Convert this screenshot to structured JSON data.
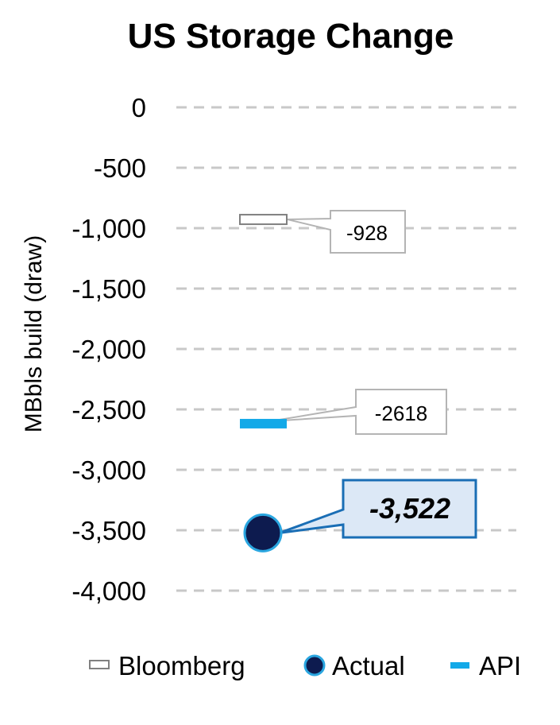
{
  "chart_data": {
    "type": "scatter",
    "title": "US Storage Change",
    "xlabel": "",
    "ylabel": "MBbls build (draw)",
    "ylim": [
      -4000,
      0
    ],
    "yticks": [
      0,
      -500,
      -1000,
      -1500,
      -2000,
      -2500,
      -3000,
      -3500,
      -4000
    ],
    "ytick_labels": [
      "0",
      "-500",
      "-1,000",
      "-1,500",
      "-2,000",
      "-2,500",
      "-3,000",
      "-3,500",
      "-4,000"
    ],
    "grid": true,
    "legend_position": "bottom",
    "series": [
      {
        "name": "Bloomberg",
        "value": -928,
        "label": "-928",
        "marker": "hollow-bar",
        "color": "#ffffff",
        "edge": "#808080"
      },
      {
        "name": "Actual",
        "value": -3522,
        "label": "-3,522",
        "marker": "circle",
        "color": "#0d1b4f",
        "edge": "#2aa6e0"
      },
      {
        "name": "API",
        "value": -2618,
        "label": "-2618",
        "marker": "bar",
        "color": "#13a9e8"
      }
    ],
    "legend": [
      "Bloomberg",
      "Actual",
      "API"
    ]
  }
}
